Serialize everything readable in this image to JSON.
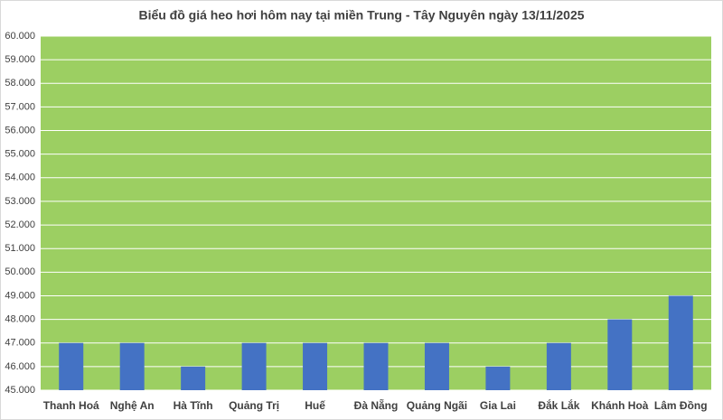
{
  "chart_data": {
    "type": "bar",
    "title": "Biểu đồ giá heo hơi hôm nay tại miền Trung - Tây Nguyên ngày 13/11/2025",
    "categories": [
      "Thanh Hoá",
      "Nghệ An",
      "Hà Tĩnh",
      "Quảng Trị",
      "Huế",
      "Đà Nẵng",
      "Quảng Ngãi",
      "Gia Lai",
      "Đắk Lắk",
      "Khánh Hoà",
      "Lâm Đồng"
    ],
    "values": [
      47000,
      47000,
      46000,
      47000,
      47000,
      47000,
      47000,
      46000,
      47000,
      48000,
      49000
    ],
    "color": "#4472c4",
    "ylim": [
      45000,
      60000
    ],
    "yticks": [
      {
        "value": 45000,
        "label": "45.000"
      },
      {
        "value": 46000,
        "label": "46.000"
      },
      {
        "value": 47000,
        "label": "47.000"
      },
      {
        "value": 48000,
        "label": "48.000"
      },
      {
        "value": 49000,
        "label": "49.000"
      },
      {
        "value": 50000,
        "label": "50.000"
      },
      {
        "value": 51000,
        "label": "51.000"
      },
      {
        "value": 52000,
        "label": "52.000"
      },
      {
        "value": 53000,
        "label": "53.000"
      },
      {
        "value": 54000,
        "label": "54.000"
      },
      {
        "value": 55000,
        "label": "55.000"
      },
      {
        "value": 56000,
        "label": "56.000"
      },
      {
        "value": 57000,
        "label": "57.000"
      },
      {
        "value": 58000,
        "label": "58.000"
      },
      {
        "value": 59000,
        "label": "59.000"
      },
      {
        "value": 60000,
        "label": "60.000"
      }
    ],
    "grid": true
  }
}
